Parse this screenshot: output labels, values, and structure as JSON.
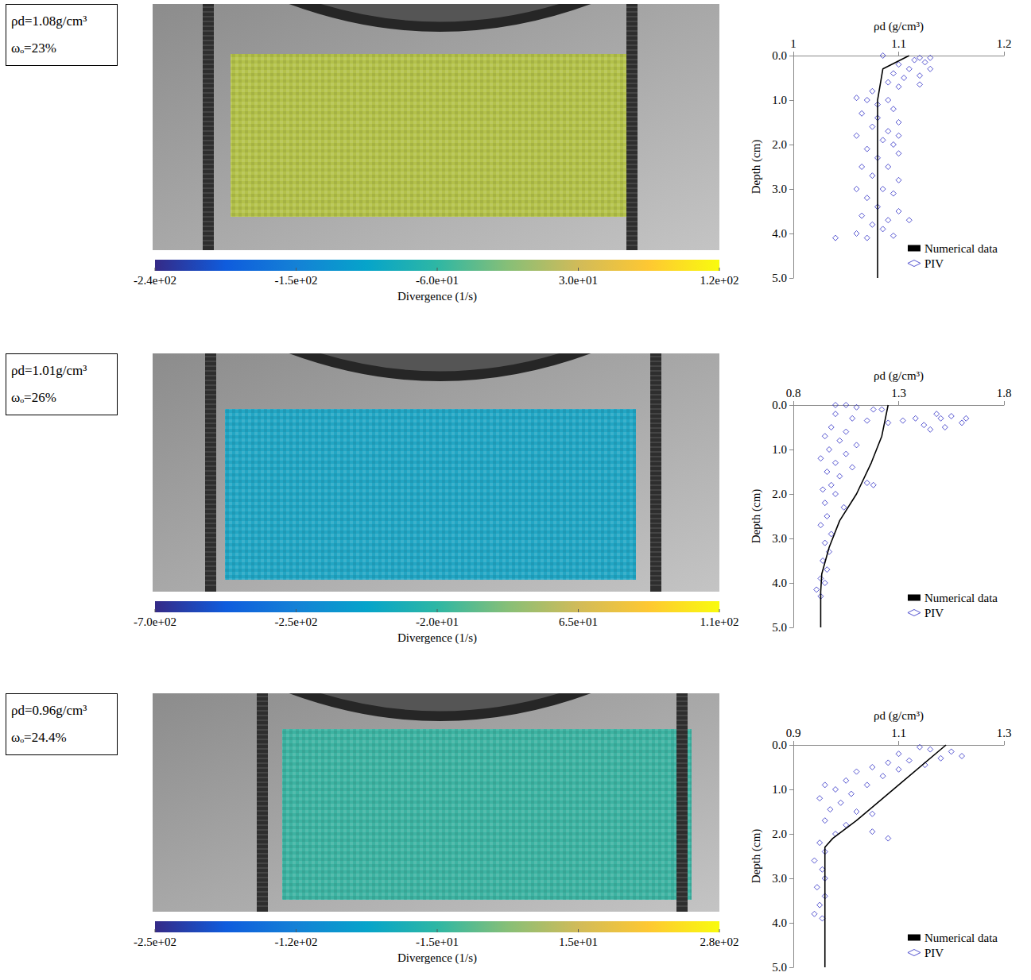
{
  "panels": [
    {
      "sample": {
        "density": "ρd=1.08g/cm³",
        "moisture": "ωₒ=23%"
      },
      "piv_field": {
        "color": "#b3c14a",
        "colorbar": {
          "label": "Divergence (1/s)",
          "range": [
            -240,
            120
          ],
          "ticks": [
            {
              "value": -240,
              "label": "-2.4e+02"
            },
            {
              "value": -150,
              "label": "-1.5e+02"
            },
            {
              "value": -60,
              "label": "-6.0e+01"
            },
            {
              "value": 30,
              "label": "3.0e+01"
            },
            {
              "value": 120,
              "label": "1.2e+02"
            }
          ]
        }
      }
    },
    {
      "sample": {
        "density": "ρd=1.01g/cm³",
        "moisture": "ωₒ=26%"
      },
      "piv_field": {
        "color": "#22a6c4",
        "colorbar": {
          "label": "Divergence (1/s)",
          "range": [
            -700,
            110
          ],
          "ticks": [
            {
              "value": -700,
              "label": "-7.0e+02"
            },
            {
              "value": -250,
              "label": "-2.5e+02"
            },
            {
              "value": -20,
              "label": "-2.0e+01"
            },
            {
              "value": 65,
              "label": "6.5e+01"
            },
            {
              "value": 110,
              "label": "1.1e+02"
            }
          ]
        }
      }
    },
    {
      "sample": {
        "density": "ρd=0.96g/cm³",
        "moisture": "ωₒ=24.4%"
      },
      "piv_field": {
        "color": "#3db3a2",
        "colorbar": {
          "label": "Divergence (1/s)",
          "range": [
            -250,
            280
          ],
          "ticks": [
            {
              "value": -250,
              "label": "-2.5e+02"
            },
            {
              "value": -120,
              "label": "-1.2e+02"
            },
            {
              "value": -15,
              "label": "-1.5e+01"
            },
            {
              "value": 15,
              "label": "1.5e+01"
            },
            {
              "value": 280,
              "label": "2.8e+02"
            }
          ]
        }
      }
    }
  ],
  "chart_data": [
    {
      "type": "scatter",
      "x_label": "ρd (g/cm³)",
      "y_label": "Depth (cm)",
      "xlim": [
        1,
        1.2
      ],
      "xticks": [
        1,
        1.1,
        1.2
      ],
      "ylim": [
        0,
        5
      ],
      "yticks": [
        {
          "value": 0,
          "label": "0.0"
        },
        {
          "value": 1,
          "label": "1.0"
        },
        {
          "value": 2,
          "label": "2.0"
        },
        {
          "value": 3,
          "label": "3.0"
        },
        {
          "value": 4,
          "label": "4.0"
        },
        {
          "value": 5,
          "label": "5.0"
        }
      ],
      "grid": false,
      "legend": "lower right",
      "series": [
        {
          "name": "Numerical data",
          "type": "line",
          "color": "#000000",
          "marker": "none",
          "line_style": "solid",
          "x": [
            1.11,
            1.085,
            1.08,
            1.08
          ],
          "values": [
            0,
            0.3,
            1,
            5
          ]
        },
        {
          "name": "PIV",
          "type": "scatter",
          "color": "#2b2bc4",
          "marker": "diamond",
          "x": [
            1.085,
            1.12,
            1.13,
            1.115,
            1.125,
            1.1,
            1.11,
            1.13,
            1.095,
            1.12,
            1.105,
            1.09,
            1.12,
            1.1,
            1.075,
            1.06,
            1.07,
            1.09,
            1.08,
            1.095,
            1.065,
            1.08,
            1.1,
            1.075,
            1.09,
            1.06,
            1.1,
            1.085,
            1.095,
            1.07,
            1.1,
            1.08,
            1.065,
            1.09,
            1.075,
            1.1,
            1.06,
            1.085,
            1.095,
            1.07,
            1.08,
            1.1,
            1.065,
            1.09,
            1.11,
            1.075,
            1.085,
            1.06,
            1.04,
            1.07,
            1.095
          ],
          "values": [
            0,
            0.05,
            0.05,
            0.1,
            0.15,
            0.2,
            0.3,
            0.3,
            0.4,
            0.45,
            0.5,
            0.6,
            0.65,
            0.7,
            0.8,
            0.95,
            1.0,
            1.0,
            1.1,
            1.2,
            1.3,
            1.4,
            1.5,
            1.6,
            1.7,
            1.8,
            1.8,
            1.9,
            2.0,
            2.1,
            2.2,
            2.3,
            2.5,
            2.5,
            2.7,
            2.8,
            3.0,
            3.0,
            3.1,
            3.2,
            3.4,
            3.5,
            3.6,
            3.7,
            3.7,
            3.8,
            3.9,
            4.0,
            4.1,
            4.1,
            4.05
          ]
        }
      ]
    },
    {
      "type": "scatter",
      "x_label": "ρd (g/cm³)",
      "y_label": "Depth (cm)",
      "xlim": [
        0.8,
        1.8
      ],
      "xticks": [
        0.8,
        1.3,
        1.8
      ],
      "ylim": [
        0,
        5
      ],
      "yticks": [
        {
          "value": 0,
          "label": "0.0"
        },
        {
          "value": 1,
          "label": "1.0"
        },
        {
          "value": 2,
          "label": "2.0"
        },
        {
          "value": 3,
          "label": "3.0"
        },
        {
          "value": 4,
          "label": "4.0"
        },
        {
          "value": 5,
          "label": "5.0"
        }
      ],
      "grid": false,
      "legend": "lower right",
      "series": [
        {
          "name": "Numerical data",
          "type": "line",
          "color": "#000000",
          "marker": "none",
          "line_style": "solid",
          "x": [
            1.25,
            1.22,
            1.17,
            1.1,
            1.02,
            0.97,
            0.935,
            0.93,
            0.93
          ],
          "values": [
            0,
            0.7,
            1.3,
            2,
            2.6,
            3.2,
            3.8,
            4.2,
            5
          ]
        },
        {
          "name": "PIV",
          "type": "scatter",
          "color": "#2b2bc4",
          "marker": "diamond",
          "x": [
            1.0,
            1.05,
            1.1,
            1.18,
            1.22,
            1.32,
            1.38,
            1.42,
            1.48,
            1.5,
            1.55,
            1.6,
            1.62,
            1.45,
            1.52,
            1.0,
            1.08,
            1.15,
            1.25,
            0.98,
            1.05,
            0.95,
            1.02,
            1.1,
            0.97,
            1.05,
            0.93,
            1.0,
            1.08,
            0.96,
            1.02,
            1.15,
            1.18,
            0.98,
            0.94,
            1.0,
            0.95,
            1.04,
            0.96,
            0.93,
            0.98,
            0.95,
            0.97,
            0.94,
            0.96,
            0.93,
            0.95,
            0.91,
            0.93
          ],
          "values": [
            0,
            0,
            0.05,
            0.1,
            0.1,
            0.35,
            0.3,
            0.45,
            0.2,
            0.3,
            0.25,
            0.4,
            0.3,
            0.55,
            0.5,
            0.2,
            0.3,
            0.35,
            0.4,
            0.5,
            0.6,
            0.7,
            0.8,
            0.9,
            1.0,
            1.1,
            1.2,
            1.3,
            1.4,
            1.5,
            1.6,
            1.75,
            1.8,
            1.8,
            1.9,
            2.0,
            2.2,
            2.3,
            2.5,
            2.7,
            2.9,
            3.1,
            3.3,
            3.5,
            3.7,
            3.9,
            4.0,
            4.15,
            4.3
          ]
        }
      ]
    },
    {
      "type": "scatter",
      "x_label": "ρd (g/cm³)",
      "y_label": "Depth (cm)",
      "xlim": [
        0.9,
        1.3
      ],
      "xticks": [
        0.9,
        1.1,
        1.3
      ],
      "ylim": [
        0,
        5
      ],
      "yticks": [
        {
          "value": 0,
          "label": "0.0"
        },
        {
          "value": 1,
          "label": "1.0"
        },
        {
          "value": 2,
          "label": "2.0"
        },
        {
          "value": 3,
          "label": "3.0"
        },
        {
          "value": 4,
          "label": "4.0"
        },
        {
          "value": 5,
          "label": "5.0"
        }
      ],
      "grid": false,
      "legend": "lower right",
      "series": [
        {
          "name": "Numerical data",
          "type": "line",
          "color": "#000000",
          "marker": "none",
          "line_style": "solid",
          "x": [
            1.19,
            1.1,
            1.02,
            0.975,
            0.96,
            0.96
          ],
          "values": [
            0,
            0.9,
            1.7,
            2.1,
            2.3,
            5
          ]
        },
        {
          "name": "PIV",
          "type": "scatter",
          "color": "#2b2bc4",
          "marker": "diamond",
          "x": [
            1.14,
            1.16,
            1.2,
            1.22,
            1.18,
            1.1,
            1.12,
            1.08,
            1.15,
            1.05,
            1.1,
            1.02,
            1.07,
            1.0,
            1.04,
            0.96,
            0.98,
            1.01,
            0.95,
            0.99,
            0.97,
            1.02,
            1.05,
            0.96,
            1.0,
            1.05,
            1.08,
            0.98,
            0.95,
            0.96,
            0.94,
            0.955,
            0.96,
            0.945,
            0.96,
            0.95,
            0.94,
            0.955
          ],
          "values": [
            0.05,
            0.1,
            0.15,
            0.25,
            0.3,
            0.2,
            0.35,
            0.4,
            0.45,
            0.5,
            0.55,
            0.6,
            0.7,
            0.8,
            0.9,
            0.9,
            1.0,
            1.1,
            1.2,
            1.3,
            1.45,
            1.5,
            1.55,
            1.7,
            1.8,
            1.95,
            2.1,
            2.0,
            2.2,
            2.4,
            2.6,
            2.8,
            3.0,
            3.2,
            3.4,
            3.6,
            3.8,
            3.9
          ]
        }
      ]
    }
  ]
}
